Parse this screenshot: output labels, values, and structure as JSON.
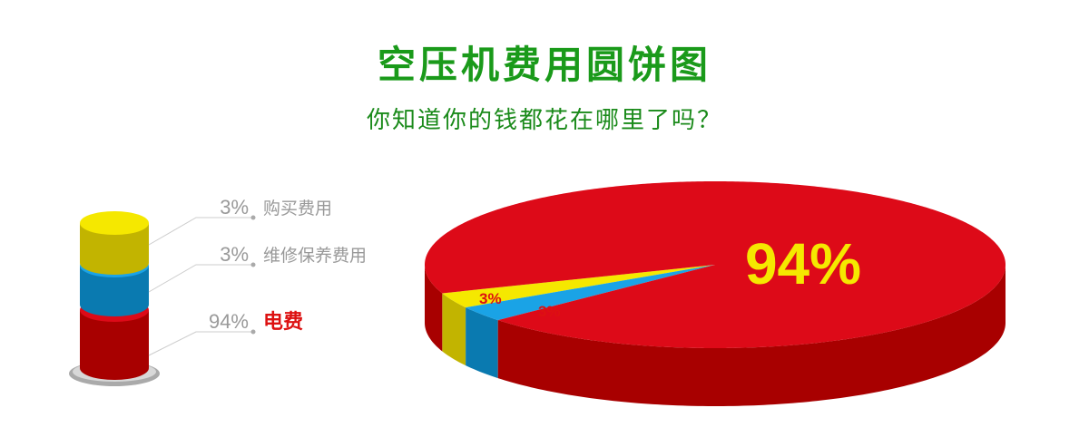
{
  "chart_data": {
    "type": "pie",
    "title": "空压机费用圆饼图",
    "subtitle": "你知道你的钱都花在哪里了吗？",
    "slices": [
      {
        "label": "购买费用",
        "value": 3,
        "value_label": "3%",
        "color": "#f5e800",
        "side_color": "#c2b400"
      },
      {
        "label": "维修保养费用",
        "value": 3,
        "value_label": "3%",
        "color": "#1aa3e6",
        "side_color": "#0a7ab0"
      },
      {
        "label": "电费",
        "value": 94,
        "value_label": "94%",
        "color": "#dd0a18",
        "side_color": "#a80000"
      }
    ],
    "legend_label_colors": [
      "#999999",
      "#999999",
      "#dd1111"
    ]
  }
}
